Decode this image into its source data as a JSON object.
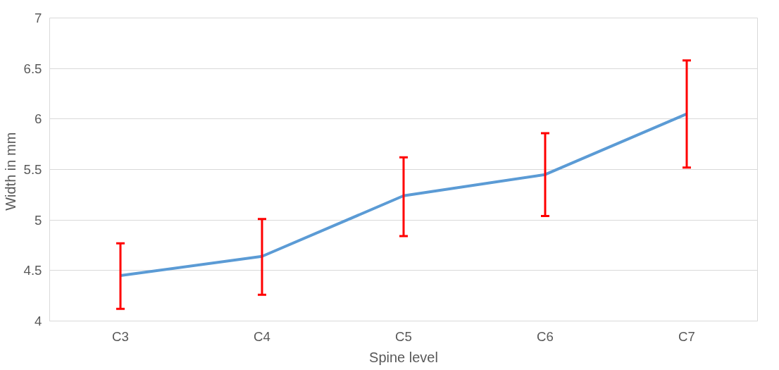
{
  "chart_data": {
    "type": "line",
    "xlabel": "Spine level",
    "ylabel": "Width  in mm",
    "categories": [
      "C3",
      "C4",
      "C5",
      "C6",
      "C7"
    ],
    "series": [
      {
        "color": "#5b9bd5",
        "values": [
          4.45,
          4.64,
          5.24,
          5.45,
          6.05
        ],
        "errors": [
          [
            4.12,
            4.77
          ],
          [
            4.26,
            5.01
          ],
          [
            4.84,
            5.62
          ],
          [
            5.04,
            5.86
          ],
          [
            5.52,
            6.58
          ]
        ]
      }
    ],
    "ylim": [
      4,
      7
    ],
    "yticks": [
      4,
      4.5,
      5,
      5.5,
      6,
      6.5,
      7
    ],
    "grid": "y",
    "marker": "none",
    "line_style": "solid"
  }
}
